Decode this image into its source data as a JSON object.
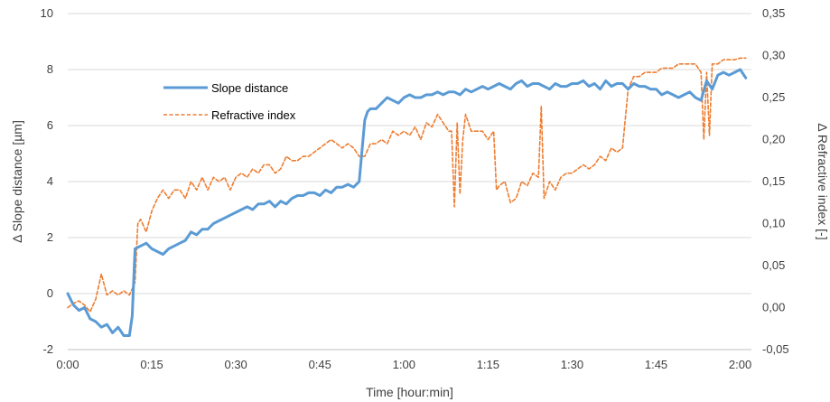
{
  "chart_data": {
    "type": "line",
    "xlabel": "Time [hour:min]",
    "ylabel": "Δ Slope distance [µm]",
    "y2label": "Δ Refractive index [-]",
    "x_unit": "minutes",
    "xlim": [
      0,
      122
    ],
    "ylim": [
      -2,
      10
    ],
    "y2lim": [
      -0.05,
      0.35
    ],
    "grid": "horizontal",
    "legend_position": "upper-left-inside",
    "x_ticks": [
      {
        "value": 0,
        "label": "0:00"
      },
      {
        "value": 15,
        "label": "0:15"
      },
      {
        "value": 30,
        "label": "0:30"
      },
      {
        "value": 45,
        "label": "0:45"
      },
      {
        "value": 60,
        "label": "1:00"
      },
      {
        "value": 75,
        "label": "1:15"
      },
      {
        "value": 90,
        "label": "1:30"
      },
      {
        "value": 105,
        "label": "1:45"
      },
      {
        "value": 120,
        "label": "2:00"
      }
    ],
    "y_ticks": [
      {
        "value": -2,
        "label": "-2"
      },
      {
        "value": 0,
        "label": "0"
      },
      {
        "value": 2,
        "label": "2"
      },
      {
        "value": 4,
        "label": "4"
      },
      {
        "value": 6,
        "label": "6"
      },
      {
        "value": 8,
        "label": "8"
      },
      {
        "value": 10,
        "label": "10"
      }
    ],
    "y2_ticks": [
      {
        "value": -0.05,
        "label": "-0,05"
      },
      {
        "value": 0.0,
        "label": "0,00"
      },
      {
        "value": 0.05,
        "label": "0,05"
      },
      {
        "value": 0.1,
        "label": "0,10"
      },
      {
        "value": 0.15,
        "label": "0,15"
      },
      {
        "value": 0.2,
        "label": "0,20"
      },
      {
        "value": 0.25,
        "label": "0,25"
      },
      {
        "value": 0.3,
        "label": "0,30"
      },
      {
        "value": 0.35,
        "label": "0,35"
      }
    ],
    "series": [
      {
        "name": "Slope distance",
        "axis": "left",
        "color": "#5b9bd5",
        "style": "solid",
        "x": [
          0,
          1,
          2,
          3,
          4,
          5,
          6,
          7,
          8,
          9,
          10,
          11,
          11.5,
          12,
          13,
          14,
          15,
          16,
          17,
          18,
          19,
          20,
          21,
          22,
          23,
          24,
          25,
          26,
          27,
          28,
          29,
          30,
          31,
          32,
          33,
          34,
          35,
          36,
          37,
          38,
          39,
          40,
          41,
          42,
          43,
          44,
          45,
          46,
          47,
          48,
          49,
          50,
          51,
          52,
          53,
          53.5,
          54,
          55,
          56,
          57,
          58,
          59,
          60,
          61,
          62,
          63,
          64,
          65,
          66,
          67,
          68,
          69,
          70,
          71,
          72,
          73,
          74,
          75,
          76,
          77,
          78,
          79,
          80,
          81,
          82,
          83,
          84,
          85,
          86,
          87,
          88,
          89,
          90,
          91,
          92,
          93,
          94,
          95,
          96,
          97,
          98,
          99,
          100,
          101,
          102,
          103,
          104,
          105,
          106,
          107,
          108,
          109,
          110,
          111,
          112,
          113,
          114,
          115,
          116,
          117,
          118,
          119,
          120,
          121
        ],
        "y": [
          0.0,
          -0.4,
          -0.6,
          -0.5,
          -0.9,
          -1.0,
          -1.2,
          -1.1,
          -1.4,
          -1.2,
          -1.5,
          -1.5,
          -0.8,
          1.6,
          1.7,
          1.8,
          1.6,
          1.5,
          1.4,
          1.6,
          1.7,
          1.8,
          1.9,
          2.2,
          2.1,
          2.3,
          2.3,
          2.5,
          2.6,
          2.7,
          2.8,
          2.9,
          3.0,
          3.1,
          3.0,
          3.2,
          3.2,
          3.3,
          3.1,
          3.3,
          3.2,
          3.4,
          3.5,
          3.5,
          3.6,
          3.6,
          3.5,
          3.7,
          3.6,
          3.8,
          3.8,
          3.9,
          3.8,
          4.0,
          6.2,
          6.5,
          6.6,
          6.6,
          6.8,
          7.0,
          6.9,
          6.8,
          7.0,
          7.1,
          7.0,
          7.0,
          7.1,
          7.1,
          7.2,
          7.1,
          7.2,
          7.2,
          7.1,
          7.3,
          7.2,
          7.3,
          7.4,
          7.3,
          7.4,
          7.5,
          7.4,
          7.3,
          7.5,
          7.6,
          7.4,
          7.5,
          7.5,
          7.4,
          7.3,
          7.5,
          7.4,
          7.4,
          7.5,
          7.5,
          7.6,
          7.4,
          7.5,
          7.3,
          7.6,
          7.4,
          7.5,
          7.5,
          7.3,
          7.5,
          7.4,
          7.4,
          7.3,
          7.3,
          7.1,
          7.2,
          7.1,
          7.0,
          7.1,
          7.2,
          7.0,
          6.9,
          7.6,
          7.3,
          7.8,
          7.9,
          7.8,
          7.9,
          8.0,
          7.7
        ]
      },
      {
        "name": "Refractive index",
        "axis": "right",
        "color": "#ed7d31",
        "style": "dashed",
        "x": [
          0,
          1,
          2,
          3,
          4,
          5,
          6,
          7,
          8,
          9,
          10,
          11,
          12,
          12.5,
          13,
          14,
          15,
          16,
          17,
          18,
          19,
          20,
          21,
          22,
          23,
          24,
          25,
          26,
          27,
          28,
          29,
          30,
          31,
          32,
          33,
          34,
          35,
          36,
          37,
          38,
          39,
          40,
          41,
          42,
          43,
          44,
          45,
          46,
          47,
          48,
          49,
          50,
          51,
          52,
          53,
          54,
          55,
          56,
          57,
          58,
          59,
          60,
          61,
          62,
          63,
          64,
          65,
          66,
          67,
          68,
          68.5,
          69,
          69.5,
          70,
          70.5,
          71,
          72,
          73,
          74,
          75,
          76,
          76.5,
          77,
          78,
          79,
          80,
          81,
          82,
          83,
          84,
          84.5,
          85,
          86,
          87,
          88,
          89,
          90,
          91,
          92,
          93,
          94,
          95,
          96,
          97,
          98,
          99,
          100,
          101,
          102,
          103,
          104,
          105,
          106,
          107,
          108,
          109,
          110,
          111,
          112,
          113,
          113.5,
          114,
          114.5,
          115,
          116,
          117,
          118,
          119,
          120,
          121
        ],
        "y": [
          0.0,
          0.005,
          0.008,
          0.003,
          -0.005,
          0.01,
          0.04,
          0.015,
          0.02,
          0.015,
          0.02,
          0.015,
          0.03,
          0.1,
          0.105,
          0.09,
          0.115,
          0.13,
          0.14,
          0.13,
          0.14,
          0.14,
          0.13,
          0.15,
          0.14,
          0.155,
          0.14,
          0.155,
          0.15,
          0.155,
          0.14,
          0.155,
          0.16,
          0.155,
          0.165,
          0.16,
          0.17,
          0.17,
          0.16,
          0.165,
          0.18,
          0.175,
          0.175,
          0.18,
          0.18,
          0.185,
          0.19,
          0.195,
          0.2,
          0.195,
          0.19,
          0.195,
          0.19,
          0.18,
          0.18,
          0.195,
          0.195,
          0.2,
          0.195,
          0.21,
          0.205,
          0.21,
          0.205,
          0.215,
          0.2,
          0.22,
          0.215,
          0.23,
          0.22,
          0.21,
          0.21,
          0.12,
          0.22,
          0.135,
          0.2,
          0.23,
          0.21,
          0.21,
          0.21,
          0.2,
          0.21,
          0.14,
          0.145,
          0.15,
          0.125,
          0.13,
          0.15,
          0.145,
          0.16,
          0.155,
          0.24,
          0.13,
          0.15,
          0.14,
          0.155,
          0.16,
          0.16,
          0.165,
          0.17,
          0.165,
          0.17,
          0.18,
          0.175,
          0.19,
          0.185,
          0.19,
          0.26,
          0.275,
          0.275,
          0.28,
          0.28,
          0.28,
          0.285,
          0.285,
          0.285,
          0.29,
          0.29,
          0.29,
          0.29,
          0.28,
          0.2,
          0.28,
          0.205,
          0.29,
          0.29,
          0.295,
          0.295,
          0.295,
          0.297,
          0.297
        ]
      }
    ]
  }
}
